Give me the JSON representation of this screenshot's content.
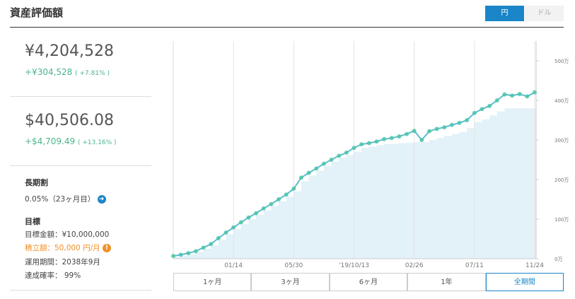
{
  "header": {
    "title": "資産評価額",
    "currency_toggle": [
      "円",
      "ドル"
    ]
  },
  "summary": {
    "jpy": {
      "value": "¥4,204,528",
      "change": "+¥304,528",
      "change_pct": "( +7.81% )"
    },
    "usd": {
      "value": "$40,506.08",
      "change": "+$4,709.49",
      "change_pct": "( +13.16% )"
    }
  },
  "discount": {
    "label": "長期割",
    "value": "0.05%（23ヶ月目）"
  },
  "goal": {
    "label": "目標",
    "items": [
      "目標金額：¥10,000,000",
      "積立額：50,000 円/月",
      "運用期間：2038年9月",
      "達成確率： 99%"
    ]
  },
  "chart_data": {
    "type": "line",
    "xlim": [
      0,
      48
    ],
    "xticks": [
      {
        "value": 8,
        "label": "01/14"
      },
      {
        "value": 16,
        "label": "05/30"
      },
      {
        "value": 24,
        "label": "'19/10/13"
      },
      {
        "value": 32,
        "label": "02/26"
      },
      {
        "value": 40,
        "label": "07/11"
      },
      {
        "value": 48,
        "label": "11/24"
      }
    ],
    "ylim": [
      0,
      550
    ],
    "yticks": [
      {
        "value": 0,
        "label": "0万"
      },
      {
        "value": 100,
        "label": "100万"
      },
      {
        "value": 200,
        "label": "200万"
      },
      {
        "value": 300,
        "label": "300万"
      },
      {
        "value": 400,
        "label": "400万"
      },
      {
        "value": 500,
        "label": "500万"
      }
    ],
    "grid": true,
    "series": [
      {
        "color": "#5bbcd2",
        "marker_color": "#46c4a4",
        "values": [
          7,
          10,
          14,
          19,
          28,
          37,
          52,
          66,
          79,
          92,
          104,
          115,
          127,
          138,
          150,
          162,
          177,
          205,
          217,
          228,
          240,
          250,
          260,
          268,
          280,
          289,
          292,
          296,
          302,
          305,
          309,
          315,
          323,
          300,
          322,
          328,
          332,
          338,
          343,
          350,
          368,
          378,
          386,
          400,
          415,
          412,
          416,
          410,
          420.4
        ]
      },
      {
        "color": "#e3f1f9",
        "step": true,
        "values": [
          5,
          8,
          12,
          17,
          25,
          34,
          48,
          62,
          75,
          88,
          100,
          111,
          122,
          133,
          145,
          157,
          170,
          196,
          210,
          222,
          234,
          245,
          255,
          262,
          270,
          280,
          283,
          287,
          290,
          290,
          292,
          293,
          295,
          295,
          300,
          305,
          310,
          315,
          320,
          330,
          345,
          352,
          362,
          372,
          380,
          380,
          380,
          380,
          380
        ]
      }
    ]
  },
  "periods": {
    "options": [
      "1ヶ月",
      "3ヶ月",
      "6ヶ月",
      "1年",
      "全期間"
    ],
    "selected": 4
  }
}
